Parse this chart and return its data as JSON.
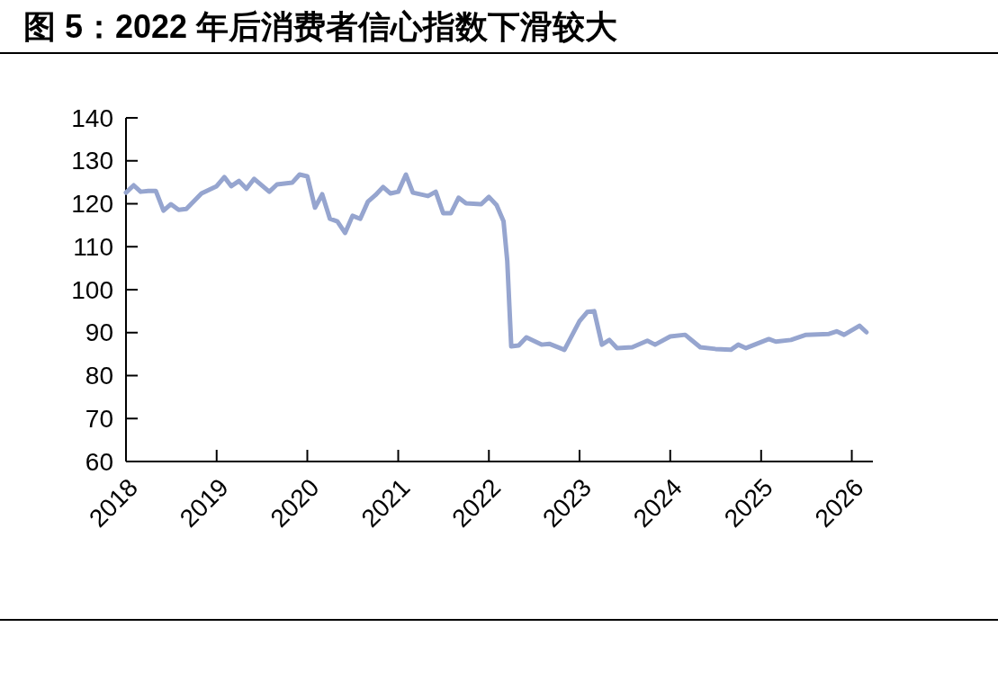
{
  "chart_data": {
    "type": "line",
    "title": "图 5：2022 年后消费者信心指数下滑较大",
    "x": [
      "2018-01",
      "2018-02",
      "2018-03",
      "2018-04",
      "2018-05",
      "2018-06",
      "2018-07",
      "2018-08",
      "2018-09",
      "2018-11",
      "2019-01",
      "2019-02",
      "2019-03",
      "2019-04",
      "2019-05",
      "2019-06",
      "2019-08",
      "2019-09",
      "2019-11",
      "2019-12",
      "2020-01",
      "2020-02",
      "2020-03",
      "2020-04",
      "2020-05",
      "2020-06",
      "2020-07",
      "2020-08",
      "2020-09",
      "2020-10",
      "2020-11",
      "2020-12",
      "2021-01",
      "2021-02",
      "2021-03",
      "2021-05",
      "2021-06",
      "2021-07",
      "2021-08",
      "2021-09",
      "2021-10",
      "2021-12",
      "2022-01",
      "2022-02",
      "2022-03",
      "2022-03-16",
      "2022-04",
      "2022-05",
      "2022-06",
      "2022-08",
      "2022-09",
      "2022-11",
      "2022-12",
      "2023-01",
      "2023-02",
      "2023-03",
      "2023-04",
      "2023-05",
      "2023-06",
      "2023-08",
      "2023-10",
      "2023-11",
      "2024-01",
      "2024-03",
      "2024-05",
      "2024-07",
      "2024-09",
      "2024-10",
      "2024-11",
      "2025-02",
      "2025-03",
      "2025-05",
      "2025-07",
      "2025-10",
      "2025-11",
      "2025-12",
      "2026-02",
      "2026-03"
    ],
    "series": [
      {
        "color": "#96a5cf",
        "values": [
          122.6,
          124.3,
          122.8,
          123.0,
          123.0,
          118.4,
          119.9,
          118.6,
          118.8,
          122.4,
          124.1,
          126.2,
          124.1,
          125.3,
          123.5,
          125.8,
          122.8,
          124.5,
          124.9,
          126.8,
          126.4,
          119.1,
          122.2,
          116.5,
          115.9,
          113.2,
          117.2,
          116.5,
          120.5,
          122.0,
          123.9,
          122.4,
          122.8,
          126.8,
          122.6,
          121.8,
          122.8,
          117.8,
          117.8,
          121.4,
          120.1,
          119.9,
          121.6,
          119.7,
          115.9,
          106.7,
          86.8,
          87.0,
          88.9,
          87.2,
          87.4,
          86.0,
          89.3,
          92.7,
          94.8,
          95.0,
          87.2,
          88.3,
          86.4,
          86.6,
          88.1,
          87.2,
          89.1,
          89.5,
          86.6,
          86.2,
          86.0,
          87.2,
          86.4,
          88.5,
          87.9,
          88.3,
          89.5,
          89.7,
          90.3,
          89.5,
          91.6,
          90.1
        ]
      }
    ],
    "xlim": [
      "2018-01-01",
      "2026-03-27"
    ],
    "xticks": [
      {
        "value": "2018",
        "label": "2018"
      },
      {
        "value": "2019",
        "label": "2019"
      },
      {
        "value": "2020",
        "label": "2020"
      },
      {
        "value": "2021",
        "label": "2021"
      },
      {
        "value": "2022",
        "label": "2022"
      },
      {
        "value": "2023",
        "label": "2023"
      },
      {
        "value": "2024",
        "label": "2024"
      },
      {
        "value": "2025",
        "label": "2025"
      },
      {
        "value": "2026",
        "label": "2026"
      }
    ],
    "ylim": [
      60,
      140
    ],
    "yticks": [
      60,
      70,
      80,
      90,
      100,
      110,
      120,
      130,
      140
    ],
    "grid": false,
    "marker": "none",
    "line_style": "solid"
  }
}
